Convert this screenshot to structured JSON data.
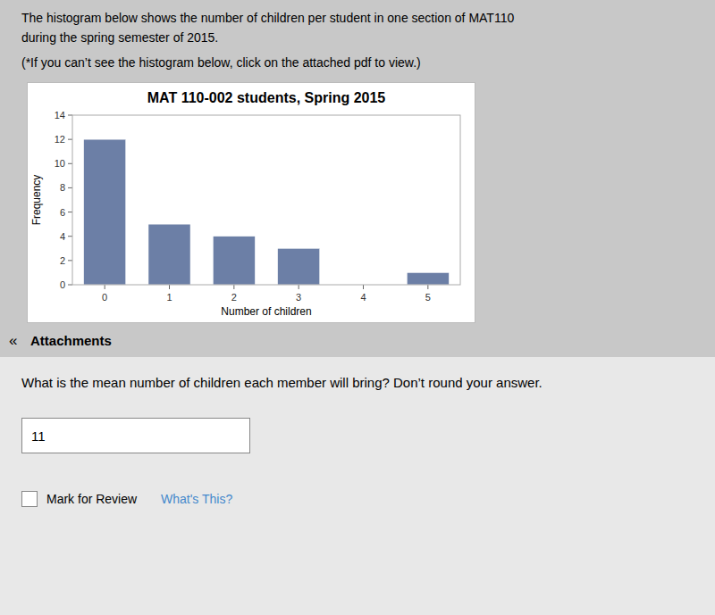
{
  "chart_data": {
    "type": "bar",
    "title": "MAT 110-002 students, Spring 2015",
    "xlabel": "Number of children",
    "ylabel": "Frequency",
    "categories": [
      0,
      1,
      2,
      3,
      4,
      5
    ],
    "values": [
      12,
      5,
      4,
      3,
      0,
      1
    ],
    "color": "#6c7fa6",
    "ylim": [
      0,
      14
    ],
    "yticks": [
      0,
      2,
      4,
      6,
      8,
      10,
      12,
      14
    ]
  },
  "page": {
    "intro": [
      "The histogram below shows the number of children per student in one section of MAT110",
      "during the spring semester of 2015.",
      "(*If you can’t see the histogram below, click on the attached pdf to view.)"
    ],
    "attachments_icon": "«",
    "attachments": "Attachments",
    "question": "What is the mean number of children each member will bring? Don’t round your answer.",
    "answer": "11",
    "mark_review": "Mark for Review",
    "whats_this": "What's This?"
  }
}
